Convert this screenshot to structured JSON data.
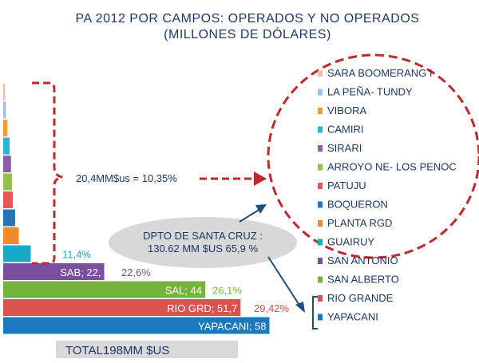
{
  "title_line1": "PA 2012 POR CAMPOS:  OPERADOS Y NO OPERADOS",
  "title_line2": "(MILLONES DE DÓLARES)",
  "colors": {
    "sara": "#f4b6b2",
    "pena": "#9dc3e6",
    "vibora": "#f39c34",
    "camiri": "#23b9d6",
    "sirari": "#8e5fa8",
    "arroyo": "#92c24b",
    "patuju": "#e85656",
    "boqueron": "#2874b8",
    "planta": "#f08a2c",
    "guairuy": "#18a8c8",
    "sanantonio": "#7a4e9e",
    "sanalberto": "#76b33c",
    "riogrande": "#d9534f",
    "yapacani": "#1b78bf",
    "annotation": "#c0282f",
    "arrow": "#1f4e79"
  },
  "chart_data": {
    "type": "bar",
    "orientation": "horizontal",
    "stacked_cumulative": true,
    "categories": [
      "SARA BOOMERANG I",
      "LA PEÑA- TUNDY",
      "VIBORA",
      "CAMIRI",
      "SIRARI",
      "ARROYO NE- LOS PENOC",
      "PATUJU",
      "BOQUERON",
      "PLANTA RGD",
      "GUAIRUY",
      "SAN ANTONIO",
      "SAN ALBERTO",
      "RIO GRANDE",
      "YAPACANI"
    ],
    "values": [
      0.4,
      0.6,
      0.9,
      1.4,
      1.7,
      1.9,
      2.1,
      2.6,
      3.4,
      6.0,
      22,
      44,
      51.7,
      58
    ],
    "color_keys": [
      "sara",
      "pena",
      "vibora",
      "camiri",
      "sirari",
      "arroyo",
      "patuju",
      "boqueron",
      "planta",
      "guairuy",
      "sanantonio",
      "sanalberto",
      "riogrande",
      "yapacani"
    ],
    "bar_labels": [
      "",
      "",
      "",
      "",
      "",
      "",
      "",
      "",
      "",
      "",
      "SAB; 22,",
      "SAL; 44",
      "RIO GRD; 51,7",
      "YAPACANI; 58"
    ],
    "percent_labels": [
      "",
      "",
      "",
      "",
      "",
      "",
      "",
      "",
      "",
      "11,4%",
      "22,6%",
      "26,1%",
      "29,42%",
      ""
    ],
    "legend_entries": [
      "SARA BOOMERANG I",
      "LA PEÑA- TUNDY",
      "VIBORA",
      "CAMIRI",
      "SIRARI",
      "ARROYO NE- LOS PENOC",
      "PATUJU",
      "BOQUERON",
      "PLANTA RGD",
      "GUAIRUY",
      "SAN ANTONIO",
      "SAN ALBERTO",
      "RIO GRANDE",
      "YAPACANI"
    ],
    "legend_placement": "right",
    "annotation_small_fields": "20,4MM$us = 10,35%",
    "annotation_santa_cruz": [
      "DPTO DE SANTA CRUZ :",
      "130.62 MM $US 65,9 %"
    ],
    "total_label": "TOTAL198MM $US"
  }
}
